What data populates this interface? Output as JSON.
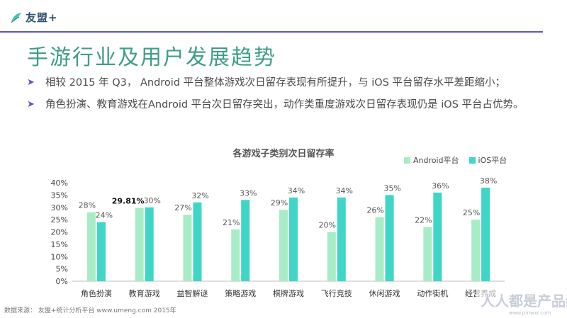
{
  "header": {
    "logo_text": "友盟+",
    "title": "手游行业及用户发展趋势"
  },
  "bullets": [
    "相较 2015 年 Q3， Android 平台整体游戏次日留存表现有所提升，与 iOS 平台留存水平差距缩小；",
    "角色扮演、教育游戏在Android 平台次日留存突出，动作类重度游戏次日留存表现仍是 iOS 平台占优势。"
  ],
  "footer": "数据来源： 友盟+统计分析平台 www.umeng.com 2015年",
  "watermark": {
    "brand": "人人都是产品经理",
    "url": "www.pmwxr.com"
  },
  "colors": {
    "accent": "#5a55c9",
    "title": "#3f9e88",
    "android": "#a8ecc5",
    "ios": "#3ed6c6"
  },
  "chart_data": {
    "type": "bar",
    "title": "各游戏子类别次日留存率",
    "categories": [
      "角色扮演",
      "教育游戏",
      "益智解谜",
      "策略游戏",
      "棋牌游戏",
      "飞行竞技",
      "休闲游戏",
      "动作街机",
      "经营养成"
    ],
    "series": [
      {
        "name": "Android平台",
        "values": [
          28,
          29.81,
          27,
          21,
          29,
          20,
          26,
          22,
          25
        ],
        "labels": [
          "28%",
          "29.81%",
          "27%",
          "21%",
          "29%",
          "20%",
          "26%",
          "22%",
          "25%"
        ]
      },
      {
        "name": "iOS平台",
        "values": [
          24,
          30,
          32,
          33,
          34,
          34,
          35,
          36,
          38
        ],
        "labels": [
          "24%",
          "30%",
          "32%",
          "33%",
          "34%",
          "34%",
          "35%",
          "36%",
          "38%"
        ]
      }
    ],
    "y_ticks": [
      "0%",
      "5%",
      "10%",
      "15%",
      "20%",
      "25%",
      "30%",
      "35%",
      "40%"
    ],
    "ylim": [
      0,
      40
    ],
    "legend_position": "top-right",
    "xlabel": "",
    "ylabel": ""
  }
}
